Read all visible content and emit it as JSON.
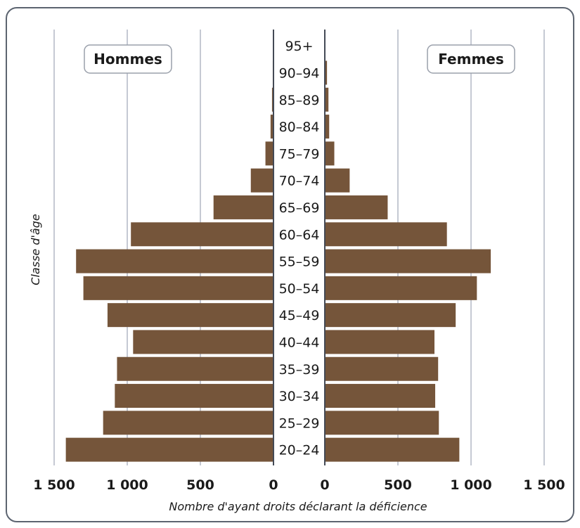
{
  "chart_data": {
    "type": "bar",
    "orientation": "horizontal-population-pyramid",
    "ylabel": "Classe d'âge",
    "xlabel": "Nombre d'ayant droits déclarant la déficience",
    "categories": [
      "20–24",
      "25–29",
      "30–34",
      "35–39",
      "40–44",
      "45–49",
      "50–54",
      "55–59",
      "60–64",
      "65–69",
      "70–74",
      "75–79",
      "80–84",
      "85–89",
      "90–94",
      "95+"
    ],
    "series": [
      {
        "name": "Hommes",
        "side": "left",
        "values": [
          1420,
          1165,
          1085,
          1070,
          960,
          1135,
          1300,
          1350,
          975,
          410,
          155,
          55,
          20,
          10,
          5,
          0
        ]
      },
      {
        "name": "Femmes",
        "side": "right",
        "values": [
          920,
          780,
          755,
          775,
          750,
          895,
          1040,
          1135,
          835,
          430,
          170,
          65,
          30,
          25,
          15,
          0
        ]
      }
    ],
    "xlim": [
      0,
      1500
    ],
    "xticks": [
      0,
      500,
      1000,
      1500
    ],
    "xtick_labels": [
      "0",
      "500",
      "1 000",
      "1 500"
    ],
    "grid": true,
    "bar_color": "#75553a",
    "grid_color": "#c5c9d3",
    "axis_color": "#444a55"
  }
}
